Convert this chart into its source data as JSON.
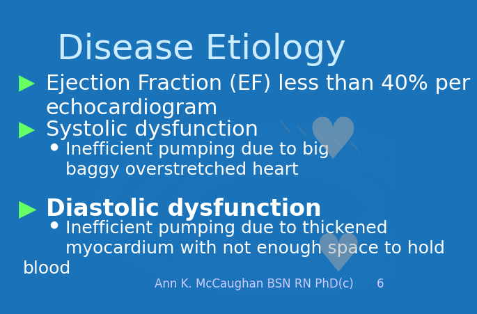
{
  "title": "Disease Etiology",
  "title_color": "#CCECFF",
  "title_fontsize": 36,
  "background_color": "#1A72B8",
  "bullet1_text": "▶  Ejection Fraction (EF) less than 40% per\n    echocardiogram",
  "bullet2_text": "▶  Systolic dysfunction",
  "sub_bullet1_text": "●  Inefficient pumping due to big\n      baggy overstretched heart",
  "bullet3_text": "▶  Diastolic dysfunction",
  "sub_bullet2_text": "●  Inefficient pumping due to thickened\n      myocardium with not enough space to hold\n      blood",
  "footer_text": "Ann K. McCaughan BSN RN PhD(c)",
  "page_number": "6",
  "text_color": "#FFFFFF",
  "bullet_color": "#66FF66",
  "footer_color": "#CCCCFF",
  "sub_text_fontsize": 18,
  "main_bullet_fontsize": 22,
  "footer_fontsize": 12
}
